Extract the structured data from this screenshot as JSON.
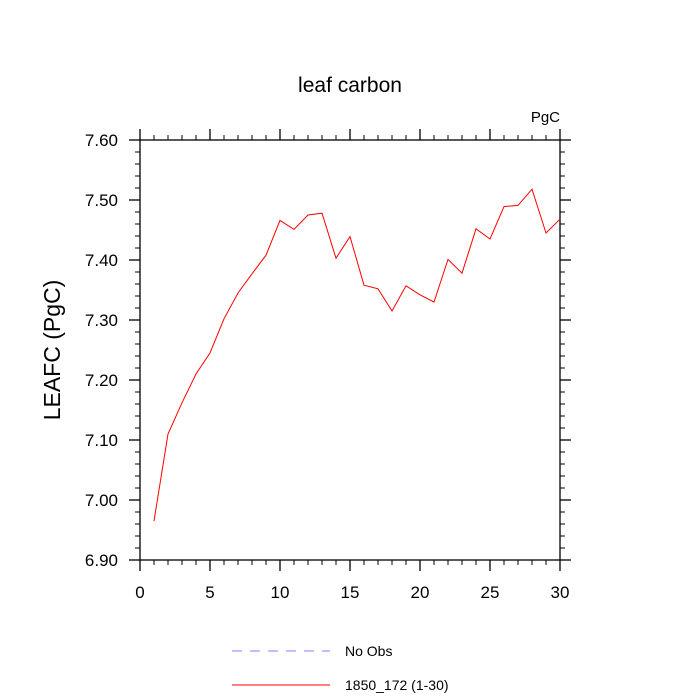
{
  "chart_data": {
    "type": "line",
    "title": "leaf carbon",
    "units_label": "PgC",
    "ylabel": "LEAFC  (PgC)",
    "xlabel": "",
    "xlim": [
      0,
      30
    ],
    "ylim": [
      6.9,
      7.6
    ],
    "x_ticks": [
      "0",
      "5",
      "10",
      "15",
      "20",
      "25",
      "30"
    ],
    "y_ticks": [
      "6.90",
      "7.00",
      "7.10",
      "7.20",
      "7.30",
      "7.40",
      "7.50",
      "7.60"
    ],
    "grid": false,
    "legend_position": "bottom",
    "series": [
      {
        "name": "1850_172 (1-30)",
        "color": "#ff0000",
        "style": "solid",
        "x": [
          1,
          2,
          3,
          4,
          5,
          6,
          7,
          8,
          9,
          10,
          11,
          12,
          13,
          14,
          15,
          16,
          17,
          18,
          19,
          20,
          21,
          22,
          23,
          24,
          25,
          26,
          27,
          28,
          29,
          30
        ],
        "values": [
          6.965,
          7.11,
          7.162,
          7.21,
          7.245,
          7.302,
          7.345,
          7.377,
          7.408,
          7.466,
          7.451,
          7.475,
          7.478,
          7.403,
          7.439,
          7.358,
          7.352,
          7.315,
          7.357,
          7.342,
          7.33,
          7.401,
          7.378,
          7.452,
          7.435,
          7.489,
          7.491,
          7.518,
          7.445,
          7.468
        ]
      }
    ],
    "legend": [
      {
        "label": "No Obs",
        "color": "#8080ff",
        "style": "dashed"
      },
      {
        "label": "1850_172 (1-30)",
        "color": "#ff0000",
        "style": "solid"
      }
    ]
  }
}
